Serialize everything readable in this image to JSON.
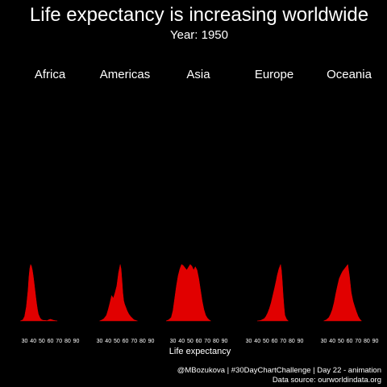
{
  "title": "Life expectancy is increasing worldwide",
  "subtitle": "Year: 1950",
  "caption": {
    "line1": "@MBozukova | #30DayChartChallenge | Day 22 - animation",
    "line2": "Data source: ourworldindata.org"
  },
  "colors": {
    "background": "#000000",
    "text": "#ffffff",
    "fill": "#e10000"
  },
  "chart_data": {
    "type": "area",
    "chart_kind": "density ridgeline, faceted by continent",
    "xlabel": "Life expectancy",
    "ylabel": "",
    "xlim": [
      22,
      97
    ],
    "x_ticks": [
      30,
      40,
      50,
      60,
      70,
      80,
      90
    ],
    "ylim": [
      0,
      1
    ],
    "grid": false,
    "legend": "none",
    "facets": [
      {
        "name": "Africa",
        "x": [
          25,
          28,
          30,
          32,
          34,
          35,
          36,
          37,
          38,
          39,
          40,
          41,
          42,
          43,
          44,
          45,
          46,
          48,
          50,
          52,
          54,
          56,
          58,
          60,
          62,
          64,
          66,
          68
        ],
        "values": [
          0,
          0.02,
          0.08,
          0.25,
          0.55,
          0.78,
          0.93,
          1.0,
          0.97,
          0.9,
          0.8,
          0.68,
          0.55,
          0.42,
          0.3,
          0.2,
          0.12,
          0.05,
          0.02,
          0.01,
          0.01,
          0.005,
          0.02,
          0.03,
          0.02,
          0.01,
          0.005,
          0
        ]
      },
      {
        "name": "Americas",
        "x": [
          30,
          33,
          35,
          38,
          40,
          42,
          44,
          46,
          48,
          50,
          52,
          54,
          55,
          56,
          57,
          58,
          59,
          60,
          62,
          64,
          66,
          68,
          70,
          72,
          74
        ],
        "values": [
          0,
          0.02,
          0.04,
          0.1,
          0.2,
          0.32,
          0.45,
          0.4,
          0.5,
          0.62,
          0.85,
          1.0,
          0.92,
          0.72,
          0.5,
          0.36,
          0.3,
          0.26,
          0.18,
          0.12,
          0.08,
          0.05,
          0.02,
          0.01,
          0
        ]
      },
      {
        "name": "Asia",
        "x": [
          22,
          25,
          28,
          30,
          32,
          34,
          36,
          38,
          40,
          42,
          44,
          46,
          48,
          50,
          52,
          54,
          56,
          58,
          60,
          62,
          64,
          66,
          68,
          70,
          72,
          74
        ],
        "values": [
          0,
          0.02,
          0.06,
          0.18,
          0.4,
          0.62,
          0.8,
          0.92,
          1.0,
          0.98,
          0.94,
          0.9,
          0.95,
          1.0,
          0.97,
          0.9,
          0.96,
          0.9,
          0.75,
          0.55,
          0.35,
          0.2,
          0.1,
          0.05,
          0.02,
          0
        ]
      },
      {
        "name": "Europe",
        "x": [
          40,
          44,
          48,
          50,
          52,
          54,
          56,
          58,
          60,
          62,
          63,
          64,
          65,
          66,
          67,
          68,
          69,
          70,
          71,
          72,
          74,
          76
        ],
        "values": [
          0,
          0.01,
          0.04,
          0.08,
          0.14,
          0.22,
          0.32,
          0.45,
          0.58,
          0.72,
          0.8,
          0.86,
          0.92,
          0.96,
          1.0,
          0.9,
          0.7,
          0.45,
          0.25,
          0.1,
          0.03,
          0
        ]
      },
      {
        "name": "Oceania",
        "x": [
          30,
          33,
          36,
          38,
          40,
          42,
          44,
          46,
          48,
          50,
          52,
          54,
          56,
          58,
          60,
          62,
          64,
          66,
          68,
          70,
          72,
          74
        ],
        "values": [
          0,
          0.02,
          0.06,
          0.12,
          0.2,
          0.32,
          0.48,
          0.62,
          0.75,
          0.82,
          0.88,
          0.92,
          0.96,
          1.0,
          0.78,
          0.5,
          0.35,
          0.25,
          0.16,
          0.08,
          0.03,
          0
        ]
      }
    ]
  }
}
